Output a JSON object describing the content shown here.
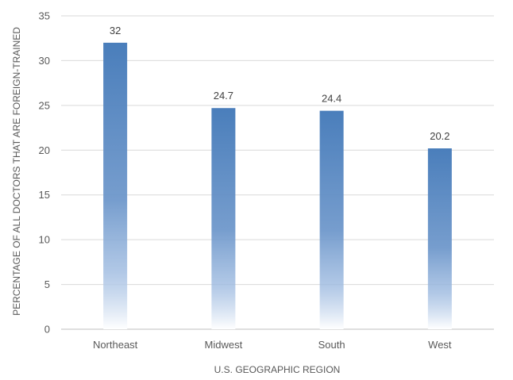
{
  "chart_data": {
    "type": "bar",
    "title": "",
    "xlabel": "U.S. GEOGRAPHIC REGION",
    "ylabel": "PERCENTAGE OF ALL DOCTORS THAT ARE FOREIGN-TRAINED",
    "categories": [
      "Northeast",
      "Midwest",
      "South",
      "West"
    ],
    "values": [
      32,
      24.7,
      24.4,
      20.2
    ],
    "data_labels": [
      "32",
      "24.7",
      "24.4",
      "20.2"
    ],
    "ylim": [
      0,
      35
    ],
    "yticks": [
      0,
      5,
      10,
      15,
      20,
      25,
      30,
      35
    ],
    "grid": true,
    "legend": "none",
    "bar_color": "#4a7ebb",
    "bar_fill": "gradient fading to white at base",
    "gridline_color": "#d9d9d9",
    "axis_color": "#bfbfbf"
  }
}
